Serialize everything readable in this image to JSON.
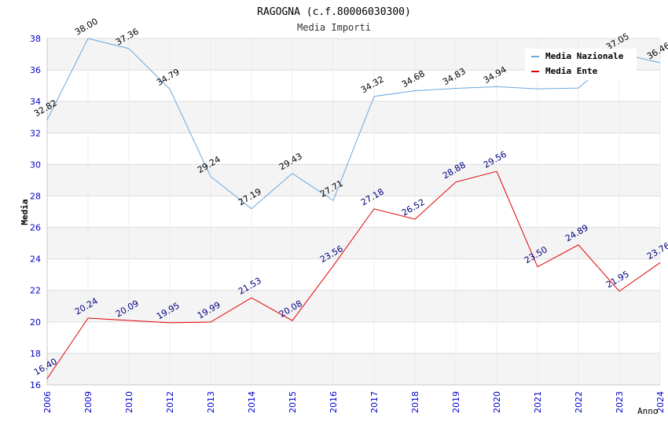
{
  "chart_data": {
    "type": "line",
    "title": "RAGOGNA (c.f.80006030300)",
    "subtitle": "Media Importi",
    "xlabel": "Anno",
    "ylabel": "Media",
    "ylim": [
      16,
      38
    ],
    "yticks": [
      16,
      18,
      20,
      22,
      24,
      26,
      28,
      30,
      32,
      34,
      36,
      38
    ],
    "grid": true,
    "legend_position": "top-right",
    "categories": [
      "2006",
      "2009",
      "2010",
      "2012",
      "2013",
      "2014",
      "2015",
      "2016",
      "2017",
      "2018",
      "2019",
      "2020",
      "2021",
      "2022",
      "2023",
      "2024"
    ],
    "series": [
      {
        "name": "Media Nazionale",
        "color": "#6aa8e0",
        "label_color": "#000000",
        "values": [
          32.82,
          38.0,
          37.36,
          34.79,
          29.24,
          27.19,
          29.43,
          27.71,
          34.32,
          34.68,
          34.83,
          34.94,
          34.8,
          34.85,
          37.05,
          36.46
        ],
        "labels": [
          "32.82",
          "38.00",
          "37.36",
          "34.79",
          "29.24",
          "27.19",
          "29.43",
          "27.71",
          "34.32",
          "34.68",
          "34.83",
          "34.94",
          "",
          "",
          "37.05",
          "36.46"
        ]
      },
      {
        "name": "Media Ente",
        "color": "#e00000",
        "label_color": "#000080",
        "values": [
          16.4,
          20.24,
          20.09,
          19.95,
          19.99,
          21.53,
          20.08,
          23.56,
          27.18,
          26.52,
          28.88,
          29.56,
          23.5,
          24.89,
          21.95,
          23.76
        ],
        "labels": [
          "16.40",
          "20.24",
          "20.09",
          "19.95",
          "19.99",
          "21.53",
          "20.08",
          "23.56",
          "27.18",
          "26.52",
          "28.88",
          "29.56",
          "23.50",
          "24.89",
          "21.95",
          "23.76"
        ]
      }
    ]
  }
}
